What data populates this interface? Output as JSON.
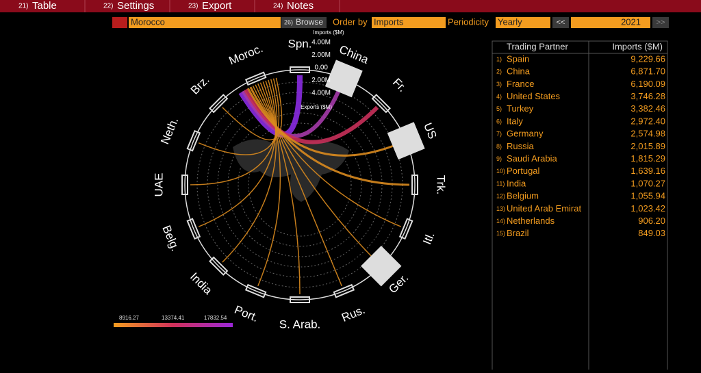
{
  "tabs": [
    {
      "num": "21)",
      "label": "Table"
    },
    {
      "num": "22)",
      "label": "Settings"
    },
    {
      "num": "23)",
      "label": "Export"
    },
    {
      "num": "24)",
      "label": "Notes"
    }
  ],
  "toolbar": {
    "country": "Morocco",
    "browse_num": "26)",
    "browse": "Browse",
    "order_label": "Order by",
    "order": "Imports",
    "periodicity_label": "Periodicity",
    "periodicity": "Yearly",
    "prev": "<<",
    "year": "2021",
    "next": ">>"
  },
  "chord": {
    "partners": [
      "Spn.",
      "China",
      "Fr.",
      "US",
      "Trk.",
      "Itl.",
      "Ger.",
      "Rus.",
      "S. Arab.",
      "Port.",
      "India",
      "Belg.",
      "UAE",
      "Neth.",
      "Brz.",
      "Moroc."
    ],
    "scale": {
      "imports_title": "Imports ($M)",
      "ticks": [
        "4.00M",
        "2.00M",
        "0.00",
        "2.00M",
        "4.00M"
      ],
      "exports_title": "Exports ($M)"
    },
    "legend": [
      "8916.27",
      "13374.41",
      "17832.54"
    ]
  },
  "table": {
    "headers": [
      "Trading Partner",
      "Imports ($M)"
    ],
    "rows": [
      [
        "1)",
        "Spain",
        "9,229.66"
      ],
      [
        "2)",
        "China",
        "6,871.70"
      ],
      [
        "3)",
        "France",
        "6,190.09"
      ],
      [
        "4)",
        "United States",
        "3,746.28"
      ],
      [
        "5)",
        "Turkey",
        "3,382.46"
      ],
      [
        "6)",
        "Italy",
        "2,972.40"
      ],
      [
        "7)",
        "Germany",
        "2,574.98"
      ],
      [
        "8)",
        "Russia",
        "2,015.89"
      ],
      [
        "9)",
        "Saudi Arabia",
        "1,815.29"
      ],
      [
        "10)",
        "Portugal",
        "1,639.16"
      ],
      [
        "11)",
        "India",
        "1,070.27"
      ],
      [
        "12)",
        "Belgium",
        "1,055.94"
      ],
      [
        "13)",
        "United Arab Emirat",
        "1,023.42"
      ],
      [
        "14)",
        "Netherlands",
        "906.20"
      ],
      [
        "15)",
        "Brazil",
        "849.03"
      ]
    ]
  }
}
